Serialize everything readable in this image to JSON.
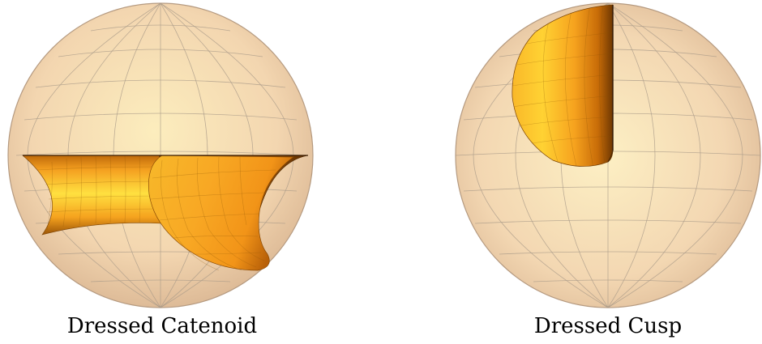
{
  "figures": [
    {
      "caption": "Dressed Catenoid"
    },
    {
      "caption": "Dressed Cusp"
    }
  ],
  "colors": {
    "sphere_center": "#fbe8b4",
    "sphere_edge": "#d9b592",
    "grid_line": "#a89a88",
    "surface_light": "#ffd23a",
    "surface_mid": "#f7a521",
    "surface_dark": "#8a4a05"
  }
}
